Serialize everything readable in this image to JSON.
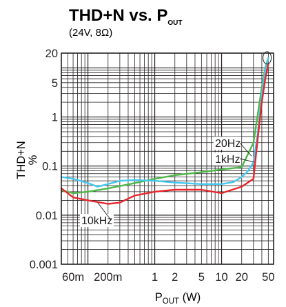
{
  "chart_data": {
    "type": "line",
    "title": {
      "main": "THD+N vs. P",
      "sub": "OUT"
    },
    "subtitle": "(24V, 8Ω)",
    "xlabel": {
      "main": "P",
      "sub": "OUT",
      "rest": " (W)"
    },
    "ylabel": {
      "top": "THD+N",
      "bottom": "%"
    },
    "x_scale": "log",
    "y_scale": "log",
    "xlim": [
      0.04,
      60
    ],
    "ylim": [
      0.001,
      20
    ],
    "grid": true,
    "x_ticks": [
      {
        "value": 0.06,
        "label": "60m"
      },
      {
        "value": 0.2,
        "label": "200m"
      },
      {
        "value": 1,
        "label": "1"
      },
      {
        "value": 2,
        "label": "2"
      },
      {
        "value": 5,
        "label": "5"
      },
      {
        "value": 10,
        "label": "10"
      },
      {
        "value": 20,
        "label": "20"
      },
      {
        "value": 50,
        "label": "50"
      }
    ],
    "y_ticks": [
      {
        "value": 0.001,
        "label": "0.001"
      },
      {
        "value": 0.01,
        "label": "0.01"
      },
      {
        "value": 0.1,
        "label": "0.1"
      },
      {
        "value": 1,
        "label": "1"
      },
      {
        "value": 5,
        "label": "5"
      },
      {
        "value": 20,
        "label": "20"
      }
    ],
    "series": [
      {
        "name": "20Hz",
        "color": "#4db848",
        "points": [
          [
            0.04,
            0.032
          ],
          [
            0.06,
            0.028
          ],
          [
            0.1,
            0.03
          ],
          [
            0.2,
            0.035
          ],
          [
            0.5,
            0.045
          ],
          [
            1,
            0.055
          ],
          [
            2,
            0.065
          ],
          [
            5,
            0.075
          ],
          [
            10,
            0.085
          ],
          [
            20,
            0.095
          ],
          [
            30,
            0.3
          ],
          [
            35,
            1.2
          ],
          [
            40,
            4
          ],
          [
            45,
            10
          ],
          [
            50,
            16
          ]
        ]
      },
      {
        "name": "1kHz",
        "color": "#44c8f0",
        "points": [
          [
            0.04,
            0.06
          ],
          [
            0.06,
            0.055
          ],
          [
            0.1,
            0.045
          ],
          [
            0.14,
            0.038
          ],
          [
            0.2,
            0.043
          ],
          [
            0.3,
            0.05
          ],
          [
            0.5,
            0.052
          ],
          [
            1,
            0.05
          ],
          [
            2,
            0.046
          ],
          [
            5,
            0.043
          ],
          [
            10,
            0.043
          ],
          [
            15,
            0.047
          ],
          [
            20,
            0.06
          ],
          [
            25,
            0.08
          ],
          [
            30,
            0.12
          ],
          [
            35,
            0.5
          ],
          [
            40,
            3
          ],
          [
            45,
            9
          ],
          [
            50,
            16
          ]
        ]
      },
      {
        "name": "10kHz",
        "color": "#e8262b",
        "points": [
          [
            0.04,
            0.035
          ],
          [
            0.06,
            0.023
          ],
          [
            0.1,
            0.02
          ],
          [
            0.2,
            0.017
          ],
          [
            0.3,
            0.018
          ],
          [
            0.5,
            0.025
          ],
          [
            1,
            0.03
          ],
          [
            2,
            0.033
          ],
          [
            5,
            0.033
          ],
          [
            10,
            0.028
          ],
          [
            20,
            0.038
          ],
          [
            30,
            0.055
          ],
          [
            35,
            0.4
          ],
          [
            40,
            2
          ],
          [
            45,
            6
          ],
          [
            50,
            12
          ]
        ]
      }
    ],
    "annotations": [
      "20Hz",
      "1kHz",
      "10kHz"
    ]
  }
}
